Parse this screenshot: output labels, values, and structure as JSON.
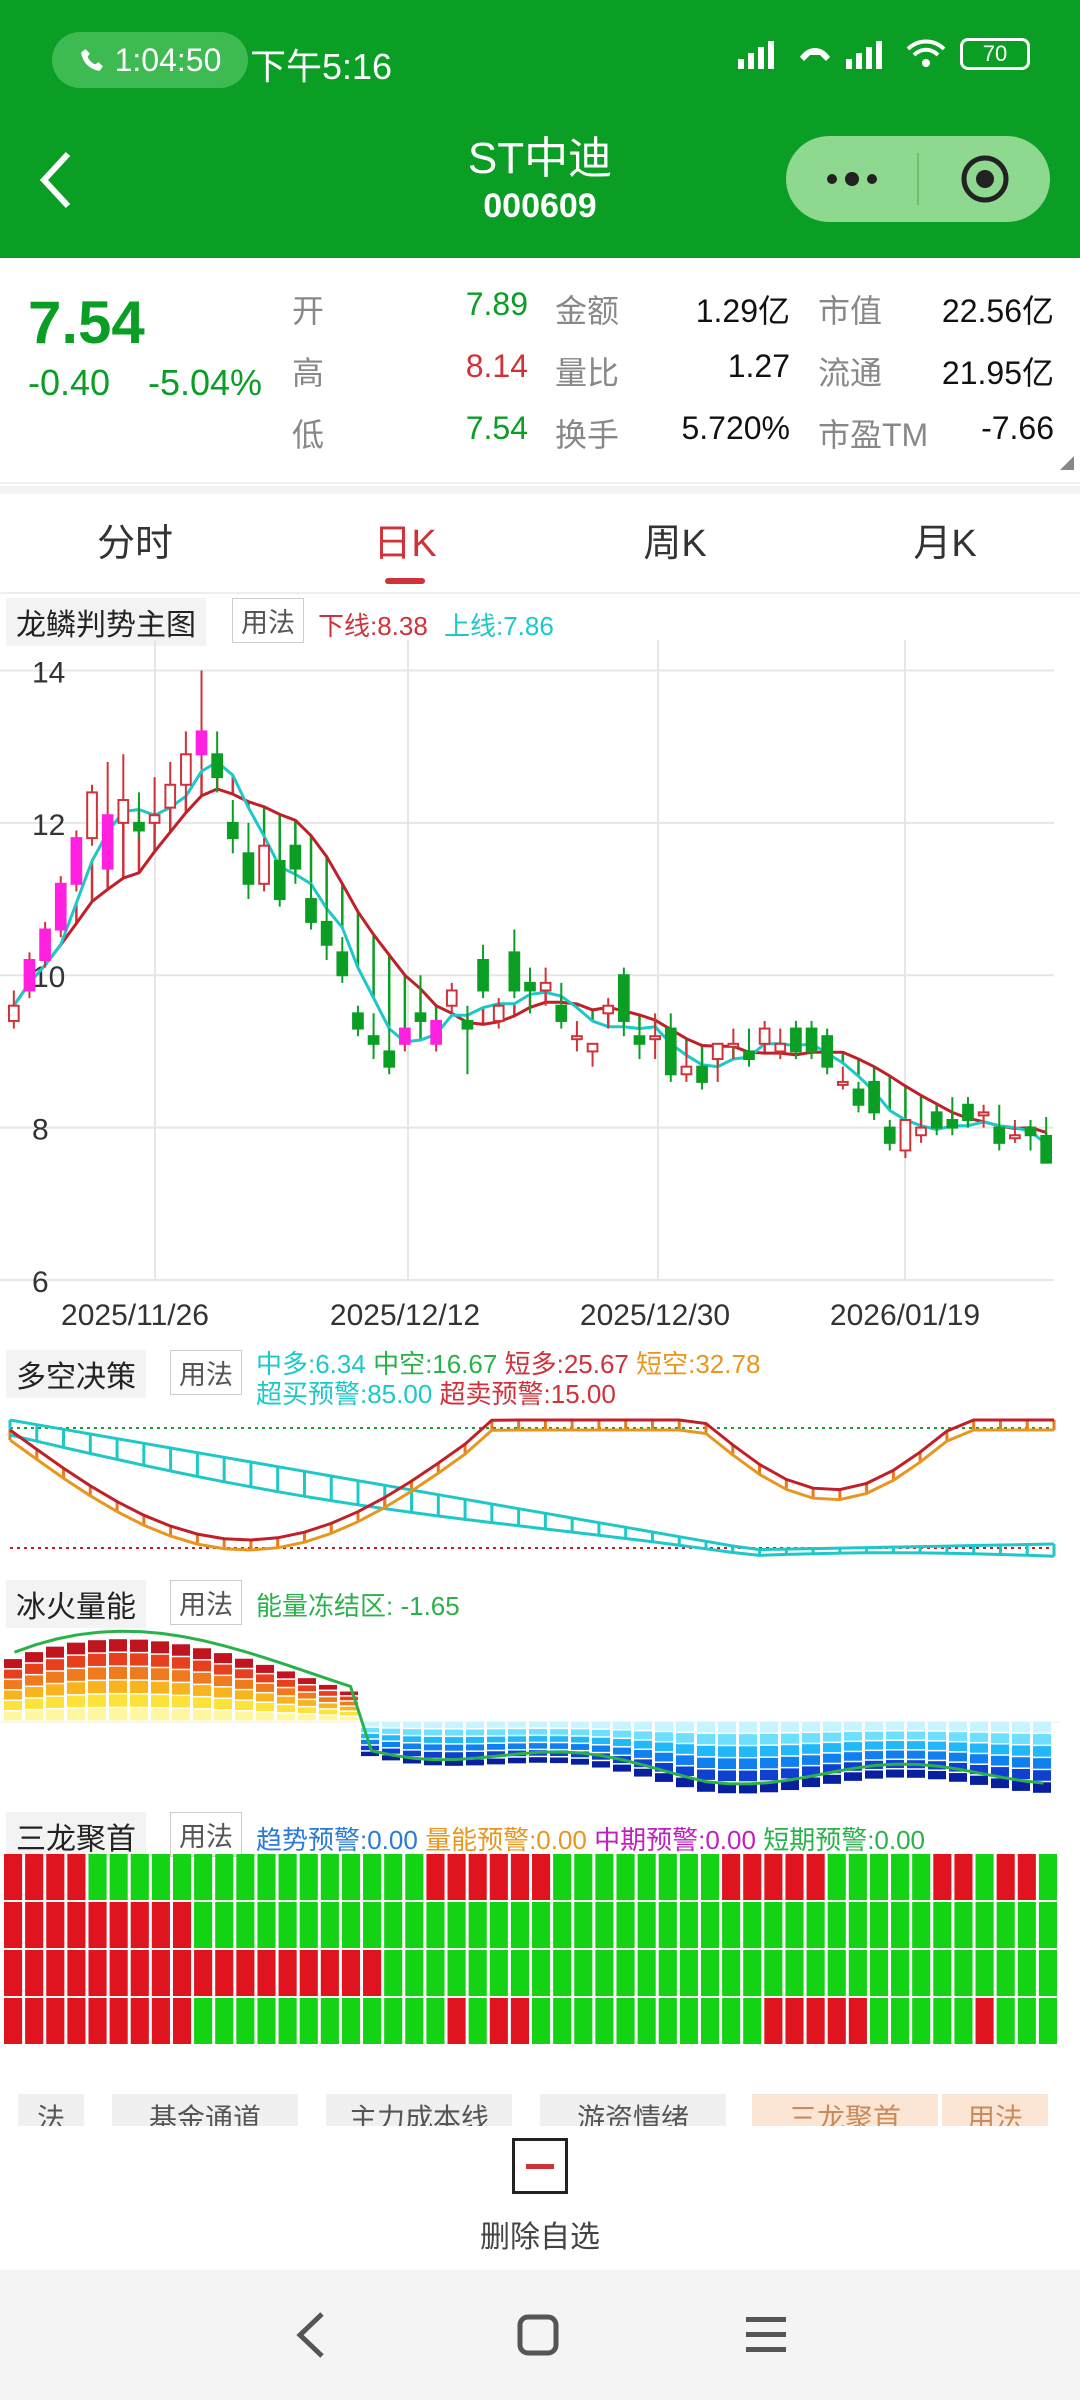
{
  "status": {
    "call_time": "1:04:50",
    "clock": "下午5:16",
    "battery": "70"
  },
  "header": {
    "name": "ST中迪",
    "code": "000609"
  },
  "quote": {
    "price": "7.54",
    "change": "-0.40",
    "change_pct": "-5.04%",
    "rows": [
      {
        "l1": "开",
        "v1": "7.89",
        "l2": "金额",
        "v2": "1.29亿",
        "l3": "市值",
        "v3": "22.56亿"
      },
      {
        "l1": "高",
        "v1": "8.14",
        "l2": "量比",
        "v2": "1.27",
        "l3": "流通",
        "v3": "21.95亿"
      },
      {
        "l1": "低",
        "v1": "7.54",
        "l2": "换手",
        "v2": "5.720%",
        "l3": "市盈TM",
        "v3": "-7.66"
      }
    ]
  },
  "tabs": [
    "分时",
    "日K",
    "周K",
    "月K"
  ],
  "main_panel": {
    "title": "龙鳞判势主图",
    "use": "用法",
    "lower": "下线:8.38",
    "upper": "上线:7.86"
  },
  "panel2": {
    "title": "多空决策",
    "use": "用法",
    "line1": [
      "中多:6.34",
      "中空:16.67",
      "短多:25.67",
      "短空:32.78"
    ],
    "line2": [
      "超买预警:85.00",
      "超卖预警:15.00"
    ]
  },
  "panel3": {
    "title": "冰火量能",
    "use": "用法",
    "legend": "能量冻结区: -1.65"
  },
  "panel4": {
    "title": "三龙聚首",
    "use": "用法",
    "legend": [
      "趋势预警:0.00",
      "量能预警:0.00",
      "中期预警:0.00",
      "短期预警:0.00"
    ]
  },
  "colors": {
    "up": "#d0323a",
    "down": "#0a9e25",
    "cyan": "#1fc8c8",
    "magenta": "#ff20e0",
    "header": "#0b9e24"
  },
  "bottom_tabs": [
    "法",
    "基金通道",
    "主力成本线",
    "游资情绪",
    "三龙聚首",
    "用法"
  ],
  "delete_label": "删除自选",
  "chart_data": {
    "type": "candlestick",
    "y_ticks": [
      "14",
      "12",
      "10",
      "8",
      "6"
    ],
    "ylim": [
      6,
      14.4
    ],
    "x_ticks": [
      "2025/11/26",
      "2025/12/12",
      "2025/12/30",
      "2026/01/19"
    ],
    "candles": [
      [
        9.4,
        9.8,
        9.6,
        9.3
      ],
      [
        9.8,
        10.3,
        10.2,
        9.7
      ],
      [
        10.2,
        10.7,
        10.6,
        10.1
      ],
      [
        10.6,
        11.3,
        11.2,
        10.5
      ],
      [
        11.2,
        11.9,
        11.8,
        11.1
      ],
      [
        11.8,
        12.5,
        12.4,
        11.7
      ],
      [
        11.4,
        12.8,
        12.1,
        11.3
      ],
      [
        12.0,
        12.9,
        12.3,
        11.8
      ],
      [
        12.0,
        12.4,
        11.9,
        11.8
      ],
      [
        12.0,
        12.6,
        12.1,
        11.9
      ],
      [
        12.2,
        12.8,
        12.5,
        12.0
      ],
      [
        12.5,
        13.2,
        12.9,
        12.3
      ],
      [
        12.9,
        14.0,
        13.2,
        12.7
      ],
      [
        12.9,
        13.2,
        12.6,
        12.4
      ],
      [
        12.0,
        12.3,
        11.8,
        11.6
      ],
      [
        11.6,
        12.0,
        11.2,
        11.0
      ],
      [
        11.2,
        11.8,
        11.7,
        11.1
      ],
      [
        11.5,
        11.8,
        11.0,
        10.9
      ],
      [
        11.7,
        11.8,
        11.4,
        11.2
      ],
      [
        11.0,
        11.2,
        10.7,
        10.6
      ],
      [
        10.7,
        10.9,
        10.4,
        10.2
      ],
      [
        10.3,
        10.5,
        10.0,
        9.9
      ],
      [
        9.5,
        9.6,
        9.3,
        9.2
      ],
      [
        9.2,
        9.5,
        9.1,
        8.9
      ],
      [
        9.0,
        9.3,
        8.8,
        8.7
      ],
      [
        9.1,
        9.3,
        9.3,
        9.0
      ],
      [
        9.5,
        10.0,
        9.4,
        9.3
      ],
      [
        9.1,
        9.4,
        9.4,
        9.0
      ],
      [
        9.6,
        9.9,
        9.8,
        9.5
      ],
      [
        9.4,
        9.6,
        9.3,
        8.7
      ],
      [
        10.2,
        10.4,
        9.8,
        9.7
      ],
      [
        9.4,
        9.7,
        9.6,
        9.3
      ],
      [
        10.3,
        10.6,
        9.8,
        9.7
      ],
      [
        9.9,
        10.1,
        9.8,
        9.5
      ],
      [
        9.8,
        10.1,
        9.9,
        9.6
      ],
      [
        9.6,
        9.9,
        9.4,
        9.3
      ],
      [
        9.2,
        9.4,
        9.2,
        9.0
      ],
      [
        9.0,
        9.1,
        9.1,
        8.8
      ],
      [
        9.5,
        9.7,
        9.6,
        9.3
      ],
      [
        10.0,
        10.1,
        9.4,
        9.2
      ],
      [
        9.2,
        9.4,
        9.1,
        8.9
      ],
      [
        9.2,
        9.5,
        9.2,
        8.9
      ],
      [
        9.3,
        9.5,
        8.7,
        8.6
      ],
      [
        8.7,
        9.1,
        8.8,
        8.6
      ],
      [
        8.8,
        8.9,
        8.6,
        8.5
      ],
      [
        8.9,
        9.1,
        9.1,
        8.6
      ],
      [
        9.1,
        9.3,
        9.1,
        8.9
      ],
      [
        9.0,
        9.3,
        8.9,
        8.8
      ],
      [
        9.1,
        9.4,
        9.3,
        9.0
      ],
      [
        9.0,
        9.3,
        9.1,
        8.9
      ],
      [
        9.3,
        9.4,
        9.0,
        8.9
      ],
      [
        9.3,
        9.4,
        9.0,
        8.9
      ],
      [
        9.2,
        9.3,
        8.8,
        8.7
      ],
      [
        8.6,
        8.8,
        8.6,
        8.5
      ],
      [
        8.5,
        8.6,
        8.3,
        8.2
      ],
      [
        8.6,
        8.7,
        8.2,
        8.1
      ],
      [
        8.0,
        8.1,
        7.8,
        7.7
      ],
      [
        7.7,
        8.1,
        8.1,
        7.6
      ],
      [
        7.9,
        8.1,
        8.0,
        7.8
      ],
      [
        8.2,
        8.3,
        8.0,
        7.9
      ],
      [
        8.1,
        8.4,
        8.0,
        7.9
      ],
      [
        8.3,
        8.4,
        8.1,
        8.0
      ],
      [
        8.2,
        8.3,
        8.2,
        8.0
      ],
      [
        8.0,
        8.3,
        7.8,
        7.7
      ],
      [
        7.9,
        8.1,
        7.9,
        7.8
      ],
      [
        8.0,
        8.1,
        7.9,
        7.7
      ],
      [
        7.89,
        8.14,
        7.54,
        7.54
      ]
    ]
  }
}
